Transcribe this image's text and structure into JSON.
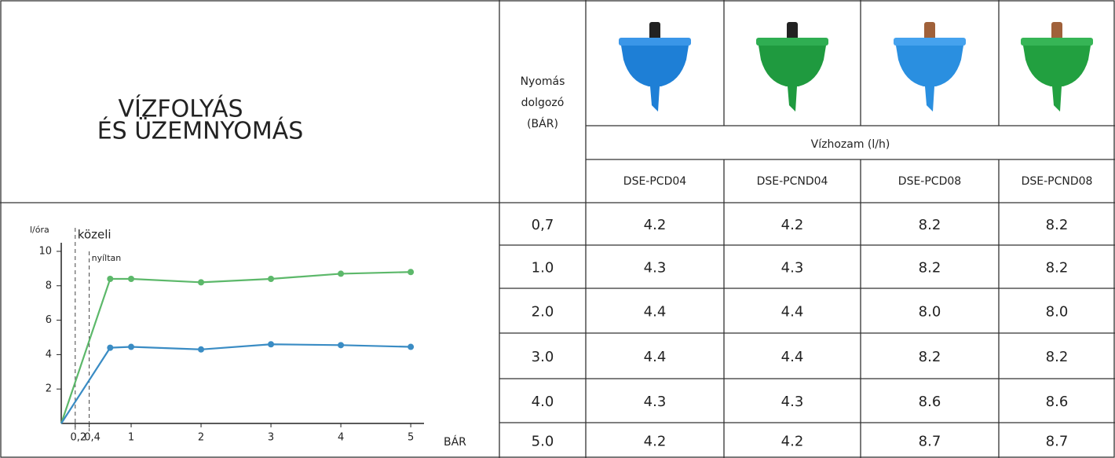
{
  "header": {
    "title": [
      "VÍZFOLYÁS",
      "ÉS ÜZEMNYOMÁS"
    ],
    "pressure_label": [
      "Nyomás",
      "dolgozó",
      "(BÁR)"
    ],
    "flow_label": "Vízhozam (l/h)",
    "models": [
      "DSE-PCD04",
      "DSE-PCND04",
      "DSE-PCD08",
      "DSE-PCND08"
    ]
  },
  "table": {
    "rows": [
      [
        "0,7",
        "4.2",
        "4.2",
        "8.2",
        "8.2"
      ],
      [
        "1.0",
        "4.3",
        "4.3",
        "8.2",
        "8.2"
      ],
      [
        "2.0",
        "4.4",
        "4.4",
        "8.0",
        "8.0"
      ],
      [
        "3.0",
        "4.4",
        "4.4",
        "8.2",
        "8.2"
      ],
      [
        "4.0",
        "4.3",
        "4.3",
        "8.6",
        "8.6"
      ],
      [
        "5.0",
        "4.2",
        "4.2",
        "8.7",
        "8.7"
      ]
    ]
  },
  "chart_data": {
    "type": "line",
    "y_label": "l/óra",
    "x_label": "BÁR",
    "annotations": [
      {
        "text": "közeli",
        "x": 0.2
      },
      {
        "text": "nyíltan",
        "x": 0.4
      }
    ],
    "x": [
      0,
      0.7,
      1,
      2,
      3,
      4,
      5
    ],
    "series": [
      {
        "color": "#5cb86a",
        "values": [
          0,
          8.4,
          8.4,
          8.2,
          8.4,
          8.7,
          8.8
        ]
      },
      {
        "color": "#3a8cc4",
        "values": [
          0,
          4.4,
          4.45,
          4.3,
          4.6,
          4.55,
          4.45
        ]
      }
    ],
    "xlim": [
      0,
      5.1
    ],
    "ylim": [
      0,
      10.5
    ],
    "xticks": [
      {
        "value": 0.2,
        "label": "0,2"
      },
      {
        "value": 0.4,
        "label": "0,4"
      },
      1,
      2,
      3,
      4,
      5
    ],
    "yticks": [
      2,
      4,
      6,
      8,
      10
    ]
  }
}
